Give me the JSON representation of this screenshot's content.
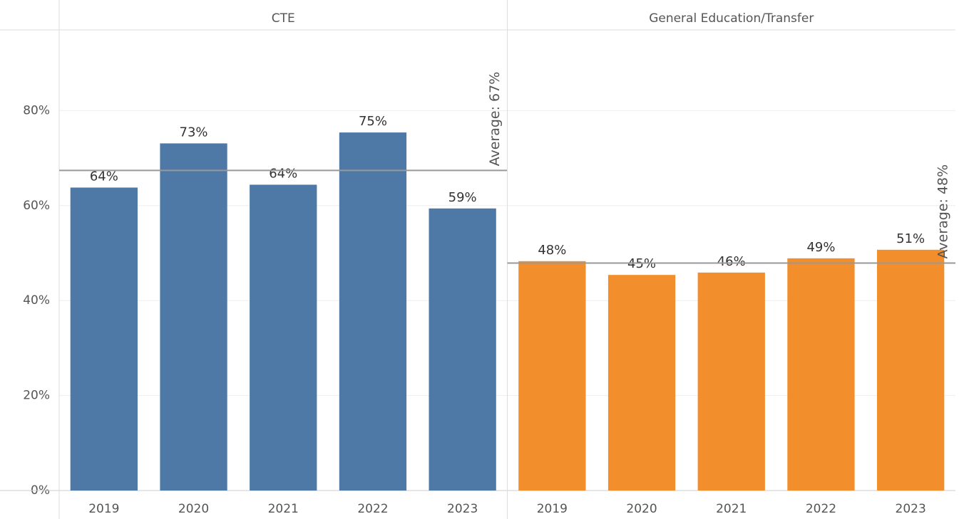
{
  "chart_data": {
    "type": "bar",
    "ylim": [
      0,
      97
    ],
    "yticks": [
      {
        "value": 0,
        "label": "0%"
      },
      {
        "value": 20,
        "label": "20%"
      },
      {
        "value": 40,
        "label": "40%"
      },
      {
        "value": 60,
        "label": "60%"
      },
      {
        "value": 80,
        "label": "80%"
      }
    ],
    "grid": true,
    "panels": [
      {
        "title": "CTE",
        "color": "#4e79a7",
        "categories": [
          "2019",
          "2020",
          "2021",
          "2022",
          "2023"
        ],
        "values": [
          63.8,
          73.1,
          64.4,
          75.4,
          59.4
        ],
        "value_labels": [
          "64%",
          "73%",
          "64%",
          "75%",
          "59%"
        ],
        "average": {
          "value": 67.4,
          "label": "Average: 67%"
        }
      },
      {
        "title": "General Education/Transfer",
        "color": "#f28e2b",
        "categories": [
          "2019",
          "2020",
          "2021",
          "2022",
          "2023"
        ],
        "values": [
          48.3,
          45.4,
          45.9,
          48.9,
          50.7
        ],
        "value_labels": [
          "48%",
          "45%",
          "46%",
          "49%",
          "51%"
        ],
        "average": {
          "value": 47.9,
          "label": "Average: 48%"
        }
      }
    ]
  }
}
